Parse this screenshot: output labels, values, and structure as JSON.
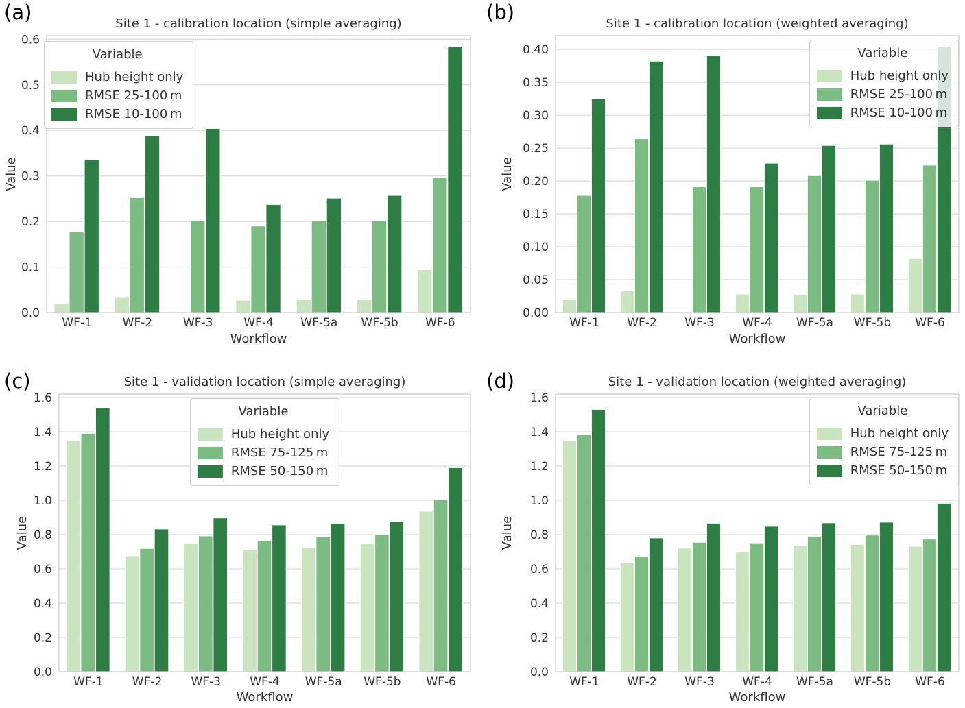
{
  "figure": {
    "palette": {
      "light": "#cbe4c0",
      "medium": "#7cbc82",
      "dark": "#2e7d45"
    },
    "style_colors": {
      "grid": "#dcdcdc",
      "spine": "#cfcfcf",
      "text": "#333333",
      "background": "#ffffff"
    }
  },
  "chart_data": [
    {
      "panel_label": "(a)",
      "type": "bar",
      "title": "Site 1 - calibration location (simple averaging)",
      "xlabel": "Workflow",
      "ylabel": "Value",
      "categories": [
        "WF-1",
        "WF-2",
        "WF-3",
        "WF-4",
        "WF-5a",
        "WF-5b",
        "WF-6"
      ],
      "series": [
        {
          "name": "Hub height only",
          "color_key": "light",
          "values": [
            0.02,
            0.033,
            0.0,
            0.027,
            0.028,
            0.028,
            0.094
          ]
        },
        {
          "name": "RMSE 25-100 m",
          "color_key": "medium",
          "values": [
            0.177,
            0.252,
            0.201,
            0.19,
            0.201,
            0.201,
            0.296
          ]
        },
        {
          "name": "RMSE 10-100 m",
          "color_key": "dark",
          "values": [
            0.335,
            0.388,
            0.404,
            0.237,
            0.251,
            0.257,
            0.583
          ]
        }
      ],
      "yticks": {
        "min": 0,
        "max": 0.6,
        "step": 0.1,
        "decimals": 1
      },
      "ylim": [
        0,
        0.608
      ],
      "grid": true,
      "legend": {
        "title": "Variable",
        "position": "upper-left"
      }
    },
    {
      "panel_label": "(b)",
      "type": "bar",
      "title": "Site 1 - calibration location (weighted averaging)",
      "xlabel": "Workflow",
      "ylabel": "Value",
      "categories": [
        "WF-1",
        "WF-2",
        "WF-3",
        "WF-4",
        "WF-5a",
        "WF-5b",
        "WF-6"
      ],
      "series": [
        {
          "name": "Hub height only",
          "color_key": "light",
          "values": [
            0.02,
            0.033,
            0.0,
            0.028,
            0.027,
            0.028,
            0.082
          ]
        },
        {
          "name": "RMSE 25-100 m",
          "color_key": "medium",
          "values": [
            0.178,
            0.264,
            0.191,
            0.191,
            0.208,
            0.201,
            0.224
          ]
        },
        {
          "name": "RMSE 10-100 m",
          "color_key": "dark",
          "values": [
            0.325,
            0.382,
            0.391,
            0.227,
            0.254,
            0.256,
            0.404
          ]
        }
      ],
      "yticks": {
        "min": 0,
        "max": 0.4,
        "step": 0.05,
        "decimals": 2
      },
      "ylim": [
        0,
        0.421
      ],
      "grid": true,
      "legend": {
        "title": "Variable",
        "position": "upper-right"
      }
    },
    {
      "panel_label": "(c)",
      "type": "bar",
      "title": "Site 1 - validation location (simple averaging)",
      "xlabel": "Workflow",
      "ylabel": "Value",
      "categories": [
        "WF-1",
        "WF-2",
        "WF-3",
        "WF-4",
        "WF-5a",
        "WF-5b",
        "WF-6"
      ],
      "series": [
        {
          "name": "Hub height only",
          "color_key": "light",
          "values": [
            1.35,
            0.676,
            0.749,
            0.713,
            0.725,
            0.747,
            0.936
          ]
        },
        {
          "name": "RMSE 75-125 m",
          "color_key": "medium",
          "values": [
            1.39,
            0.719,
            0.792,
            0.765,
            0.787,
            0.8,
            1.003
          ]
        },
        {
          "name": "RMSE 50-150 m",
          "color_key": "dark",
          "values": [
            1.538,
            0.832,
            0.897,
            0.856,
            0.865,
            0.876,
            1.19
          ]
        }
      ],
      "yticks": {
        "min": 0,
        "max": 1.6,
        "step": 0.2,
        "decimals": 1
      },
      "ylim": [
        0,
        1.62
      ],
      "grid": true,
      "legend": {
        "title": "Variable",
        "position": "upper-center"
      }
    },
    {
      "panel_label": "(d)",
      "type": "bar",
      "title": "Site 1 - validation location (weighted averaging)",
      "xlabel": "Workflow",
      "ylabel": "Value",
      "categories": [
        "WF-1",
        "WF-2",
        "WF-3",
        "WF-4",
        "WF-5a",
        "WF-5b",
        "WF-6"
      ],
      "series": [
        {
          "name": "Hub height only",
          "color_key": "light",
          "values": [
            1.35,
            0.635,
            0.721,
            0.698,
            0.738,
            0.742,
            0.731
          ]
        },
        {
          "name": "RMSE 75-125 m",
          "color_key": "medium",
          "values": [
            1.385,
            0.672,
            0.755,
            0.751,
            0.79,
            0.797,
            0.773
          ]
        },
        {
          "name": "RMSE 50-150 m",
          "color_key": "dark",
          "values": [
            1.53,
            0.78,
            0.866,
            0.848,
            0.868,
            0.872,
            0.982
          ]
        }
      ],
      "yticks": {
        "min": 0,
        "max": 1.6,
        "step": 0.2,
        "decimals": 1
      },
      "ylim": [
        0,
        1.62
      ],
      "grid": true,
      "legend": {
        "title": "Variable",
        "position": "upper-right"
      }
    }
  ]
}
